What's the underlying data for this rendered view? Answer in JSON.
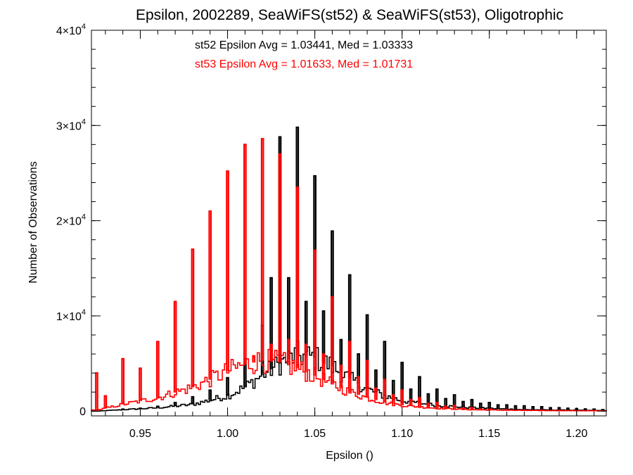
{
  "chart_data": {
    "type": "histogram-step",
    "title": "Epsilon, 2002289, SeaWiFS(st52) & SeaWiFS(st53), Oligotrophic",
    "xlabel": "Epsilon ()",
    "ylabel": "Number of Observations",
    "xlim": [
      0.922,
      1.217
    ],
    "ylim": [
      -500,
      40000
    ],
    "xticks": [
      0.95,
      1.0,
      1.05,
      1.1,
      1.15,
      1.2
    ],
    "xtick_labels": [
      "0.95",
      "1.00",
      "1.05",
      "1.10",
      "1.15",
      "1.20"
    ],
    "yticks": [
      {
        "value": 0,
        "mantissa": "0",
        "exp": ""
      },
      {
        "value": 10000,
        "mantissa": "1×10",
        "exp": "4"
      },
      {
        "value": 20000,
        "mantissa": "2×10",
        "exp": "4"
      },
      {
        "value": 30000,
        "mantissa": "3×10",
        "exp": "4"
      },
      {
        "value": 40000,
        "mantissa": "4×10",
        "exp": "4"
      }
    ],
    "grid": false,
    "annotations": [
      {
        "text": "st52 Epsilon Avg = 1.03441, Med = 1.03333",
        "color": "#000000"
      },
      {
        "text": "st53 Epsilon Avg = 1.01633, Med = 1.01731",
        "color": "#ff0000"
      }
    ],
    "series": [
      {
        "color": "#000000",
        "spikes": [
          [
            0.93,
            0
          ],
          [
            0.94,
            200
          ],
          [
            0.95,
            300
          ],
          [
            0.96,
            500
          ],
          [
            0.97,
            900
          ],
          [
            0.98,
            1500
          ],
          [
            0.99,
            2200
          ],
          [
            1.0,
            3500
          ],
          [
            1.01,
            5500
          ],
          [
            1.02,
            9000
          ],
          [
            1.025,
            14000
          ],
          [
            1.03,
            28800
          ],
          [
            1.035,
            14000
          ],
          [
            1.04,
            29800
          ],
          [
            1.045,
            11500
          ],
          [
            1.05,
            24700
          ],
          [
            1.055,
            10500
          ],
          [
            1.06,
            18900
          ],
          [
            1.065,
            7500
          ],
          [
            1.07,
            14300
          ],
          [
            1.075,
            6000
          ],
          [
            1.08,
            10100
          ],
          [
            1.085,
            4300
          ],
          [
            1.09,
            7300
          ],
          [
            1.095,
            3200
          ],
          [
            1.1,
            5100
          ],
          [
            1.105,
            2300
          ],
          [
            1.11,
            3600
          ],
          [
            1.115,
            1800
          ],
          [
            1.12,
            2300
          ],
          [
            1.125,
            1300
          ],
          [
            1.13,
            1700
          ],
          [
            1.135,
            1000
          ],
          [
            1.14,
            1200
          ],
          [
            1.145,
            800
          ],
          [
            1.15,
            900
          ],
          [
            1.155,
            650
          ],
          [
            1.16,
            650
          ],
          [
            1.165,
            550
          ],
          [
            1.17,
            550
          ],
          [
            1.175,
            450
          ],
          [
            1.18,
            450
          ],
          [
            1.185,
            350
          ],
          [
            1.19,
            350
          ],
          [
            1.195,
            300
          ],
          [
            1.2,
            250
          ],
          [
            1.205,
            220
          ],
          [
            1.21,
            200
          ],
          [
            1.215,
            150
          ]
        ],
        "background": [
          [
            0.925,
            0
          ],
          [
            0.94,
            150
          ],
          [
            0.96,
            350
          ],
          [
            0.98,
            700
          ],
          [
            1.0,
            1600
          ],
          [
            1.01,
            2500
          ],
          [
            1.02,
            3800
          ],
          [
            1.03,
            5000
          ],
          [
            1.04,
            5900
          ],
          [
            1.05,
            5600
          ],
          [
            1.06,
            4700
          ],
          [
            1.07,
            3400
          ],
          [
            1.08,
            2300
          ],
          [
            1.09,
            1600
          ],
          [
            1.1,
            1100
          ],
          [
            1.12,
            600
          ],
          [
            1.14,
            350
          ],
          [
            1.17,
            150
          ],
          [
            1.217,
            60
          ]
        ]
      },
      {
        "color": "#ff0000",
        "spikes": [
          [
            0.925,
            4000
          ],
          [
            0.93,
            1600
          ],
          [
            0.94,
            5500
          ],
          [
            0.945,
            700
          ],
          [
            0.95,
            4500
          ],
          [
            0.955,
            900
          ],
          [
            0.96,
            7300
          ],
          [
            0.965,
            1300
          ],
          [
            0.97,
            11500
          ],
          [
            0.975,
            2000
          ],
          [
            0.98,
            17000
          ],
          [
            0.985,
            2600
          ],
          [
            0.99,
            21000
          ],
          [
            0.995,
            3400
          ],
          [
            1.0,
            25200
          ],
          [
            1.005,
            4500
          ],
          [
            1.01,
            28000
          ],
          [
            1.015,
            5800
          ],
          [
            1.02,
            28600
          ],
          [
            1.025,
            7000
          ],
          [
            1.03,
            27000
          ],
          [
            1.035,
            7500
          ],
          [
            1.04,
            23500
          ],
          [
            1.045,
            7000
          ],
          [
            1.05,
            16900
          ],
          [
            1.055,
            6000
          ],
          [
            1.06,
            12000
          ],
          [
            1.065,
            4800
          ],
          [
            1.07,
            7300
          ],
          [
            1.075,
            3600
          ],
          [
            1.08,
            5300
          ],
          [
            1.085,
            2400
          ],
          [
            1.09,
            3300
          ],
          [
            1.095,
            1700
          ],
          [
            1.1,
            2200
          ],
          [
            1.105,
            1200
          ],
          [
            1.11,
            1400
          ],
          [
            1.115,
            800
          ],
          [
            1.12,
            900
          ],
          [
            1.125,
            500
          ],
          [
            1.13,
            600
          ],
          [
            1.135,
            300
          ],
          [
            1.14,
            350
          ],
          [
            1.145,
            220
          ],
          [
            1.15,
            200
          ],
          [
            1.16,
            150
          ],
          [
            1.17,
            100
          ],
          [
            1.18,
            80
          ],
          [
            1.19,
            60
          ],
          [
            1.2,
            50
          ],
          [
            1.21,
            40
          ]
        ],
        "background": [
          [
            0.925,
            100
          ],
          [
            0.94,
            700
          ],
          [
            0.96,
            1400
          ],
          [
            0.98,
            2500
          ],
          [
            0.99,
            3300
          ],
          [
            1.0,
            4200
          ],
          [
            1.01,
            4900
          ],
          [
            1.02,
            5300
          ],
          [
            1.03,
            5100
          ],
          [
            1.04,
            4500
          ],
          [
            1.05,
            3700
          ],
          [
            1.06,
            2800
          ],
          [
            1.07,
            2000
          ],
          [
            1.08,
            1400
          ],
          [
            1.09,
            900
          ],
          [
            1.1,
            600
          ],
          [
            1.12,
            300
          ],
          [
            1.14,
            150
          ],
          [
            1.17,
            70
          ],
          [
            1.217,
            30
          ]
        ]
      }
    ]
  }
}
